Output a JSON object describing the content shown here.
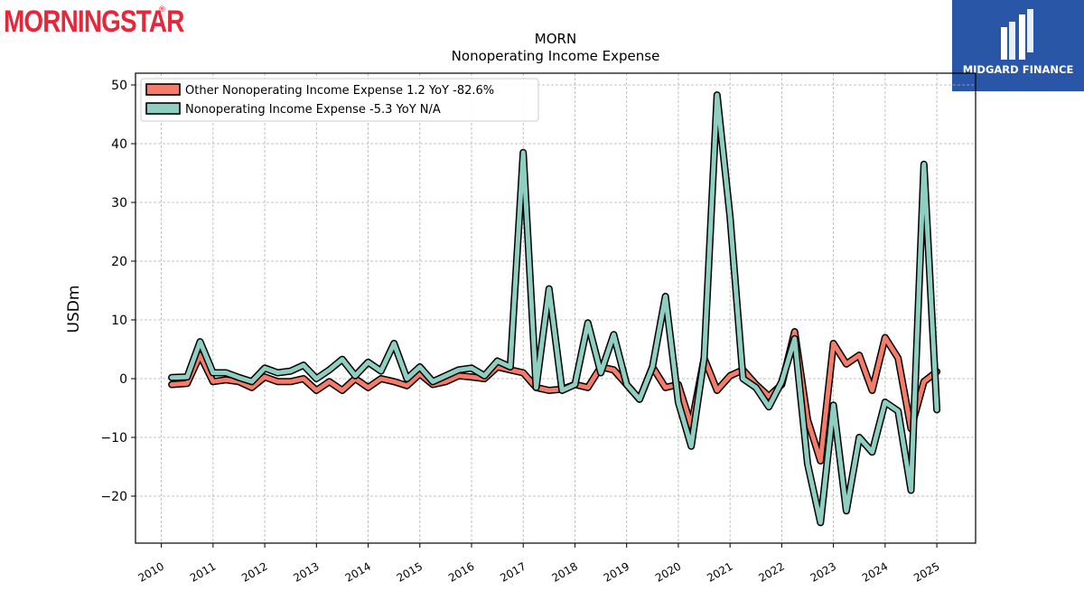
{
  "logos": {
    "left": "MORNINGSTAR",
    "left_mark": "®",
    "right": "MIDGARD FINANCE"
  },
  "chart_data": {
    "type": "line",
    "title": "MORN",
    "subtitle": "Nonoperating Income Expense",
    "xlabel": "",
    "ylabel": "USDm",
    "xlim": [
      2009.5,
      2025.75
    ],
    "ylim": [
      -28,
      52
    ],
    "yticks": [
      -20,
      -10,
      0,
      10,
      20,
      30,
      40,
      50
    ],
    "ytick_labels": [
      "−20",
      "−10",
      "0",
      "10",
      "20",
      "30",
      "40",
      "50"
    ],
    "xticks": [
      2010,
      2011,
      2012,
      2013,
      2014,
      2015,
      2016,
      2017,
      2018,
      2019,
      2020,
      2021,
      2022,
      2023,
      2024,
      2025
    ],
    "xtick_labels": [
      "2010",
      "2011",
      "2012",
      "2013",
      "2014",
      "2015",
      "2016",
      "2017",
      "2018",
      "2019",
      "2020",
      "2021",
      "2022",
      "2023",
      "2024",
      "2025"
    ],
    "grid": true,
    "legend_position": "top-left",
    "series": [
      {
        "name": "Other Nonoperating Income Expense  1.2 YoY -82.6%",
        "color": "#f47c6a",
        "x": [
          2010.2,
          2010.5,
          2010.75,
          2011.0,
          2011.25,
          2011.5,
          2011.75,
          2012.0,
          2012.25,
          2012.5,
          2012.75,
          2013.0,
          2013.25,
          2013.5,
          2013.75,
          2014.0,
          2014.25,
          2014.5,
          2014.75,
          2015.0,
          2015.25,
          2015.5,
          2015.75,
          2016.0,
          2016.25,
          2016.5,
          2016.75,
          2017.0,
          2017.25,
          2017.5,
          2017.75,
          2018.0,
          2018.25,
          2018.5,
          2018.75,
          2019.0,
          2019.25,
          2019.5,
          2019.75,
          2020.0,
          2020.25,
          2020.5,
          2020.75,
          2021.0,
          2021.25,
          2021.5,
          2021.75,
          2022.0,
          2022.25,
          2022.5,
          2022.75,
          2023.0,
          2023.25,
          2023.5,
          2023.75,
          2024.0,
          2024.25,
          2024.5,
          2024.75,
          2025.0
        ],
        "values": [
          -1.0,
          -0.8,
          4.0,
          -0.5,
          -0.2,
          -0.5,
          -1.5,
          0.3,
          -0.5,
          -0.5,
          0.0,
          -2.0,
          -0.5,
          -2.0,
          0.0,
          -1.5,
          0.0,
          -0.5,
          -1.2,
          0.8,
          -1.0,
          -0.5,
          0.5,
          0.3,
          0.0,
          2.0,
          1.5,
          1.0,
          -1.5,
          -2.0,
          -1.8,
          -1.0,
          -1.5,
          2.0,
          1.5,
          -1.0,
          -3.5,
          2.0,
          -1.5,
          -1.0,
          -8.0,
          3.5,
          -2.0,
          0.5,
          1.5,
          -1.0,
          -3.0,
          -1.0,
          8.0,
          -7.0,
          -14.0,
          6.0,
          2.5,
          4.0,
          -2.0,
          7.0,
          3.5,
          -8.5,
          -0.5,
          1.2
        ]
      },
      {
        "name": "Nonoperating Income Expense  -5.3 YoY N/A",
        "color": "#8ecfc1",
        "x": [
          2010.2,
          2010.5,
          2010.75,
          2011.0,
          2011.25,
          2011.5,
          2011.75,
          2012.0,
          2012.25,
          2012.5,
          2012.75,
          2013.0,
          2013.25,
          2013.5,
          2013.75,
          2014.0,
          2014.25,
          2014.5,
          2014.75,
          2015.0,
          2015.25,
          2015.5,
          2015.75,
          2016.0,
          2016.25,
          2016.5,
          2016.75,
          2017.0,
          2017.25,
          2017.5,
          2017.75,
          2018.0,
          2018.25,
          2018.5,
          2018.75,
          2019.0,
          2019.25,
          2019.5,
          2019.75,
          2020.0,
          2020.25,
          2020.5,
          2020.75,
          2021.0,
          2021.25,
          2021.5,
          2021.75,
          2022.0,
          2022.25,
          2022.5,
          2022.75,
          2023.0,
          2023.25,
          2023.5,
          2023.75,
          2024.0,
          2024.25,
          2024.5,
          2024.75,
          2025.0
        ],
        "values": [
          0.2,
          0.3,
          6.3,
          1.0,
          1.0,
          0.2,
          -0.5,
          1.8,
          1.0,
          1.3,
          2.3,
          0.0,
          1.5,
          3.3,
          0.5,
          2.8,
          1.3,
          6.0,
          0.0,
          2.0,
          -0.5,
          0.5,
          1.5,
          1.8,
          0.5,
          3.0,
          2.0,
          38.5,
          -1.5,
          15.3,
          -2.0,
          -1.0,
          9.5,
          1.0,
          7.5,
          -1.0,
          -3.5,
          2.0,
          14.0,
          -4.0,
          -11.5,
          3.5,
          48.3,
          27.5,
          0.0,
          -1.5,
          -4.8,
          -0.5,
          6.8,
          -14.5,
          -24.5,
          -4.5,
          -22.5,
          -10.0,
          -12.5,
          -4.0,
          -5.5,
          -19.0,
          36.5,
          -5.3
        ]
      }
    ]
  }
}
